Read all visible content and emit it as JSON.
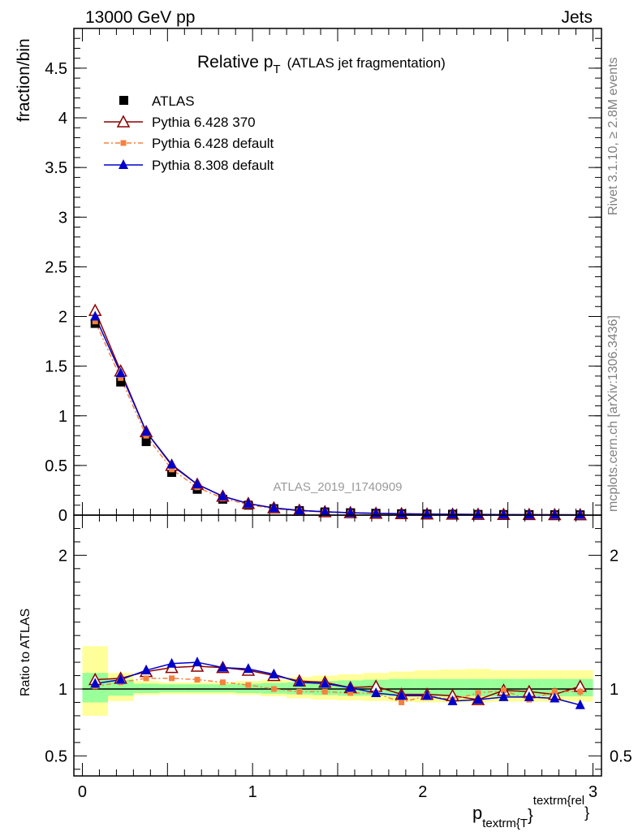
{
  "header": {
    "left": "13000 GeV pp",
    "right": "Jets"
  },
  "plot_title": {
    "main": "Relative p",
    "sub": "T",
    "rest": "(ATLAS jet fragmentation)"
  },
  "analysis_label": "ATLAS_2019_I1740909",
  "side_text": {
    "rivet": "Rivet 3.1.10, ≥ 2.8M events",
    "source": "mcplots.cern.ch [arXiv:1306.3436]"
  },
  "colors": {
    "atlas": "#000000",
    "py6_370": "#8b0000",
    "py6_default": "#f5813f",
    "py8_default": "#0000cc",
    "band_inner": "#99ff99",
    "band_outer": "#ffff99"
  },
  "chart_data": [
    {
      "type": "scatter",
      "ylabel": "fraction/bin",
      "xlim": [
        -0.05,
        3.05
      ],
      "ylim": [
        0,
        4.9
      ],
      "grid": false,
      "legend_position": "top-left",
      "yticks": [
        {
          "v": 0,
          "label": "0"
        },
        {
          "v": 0.5,
          "label": "0.5"
        },
        {
          "v": 1,
          "label": "1"
        },
        {
          "v": 1.5,
          "label": "1.5"
        },
        {
          "v": 2,
          "label": "2"
        },
        {
          "v": 2.5,
          "label": "2.5"
        },
        {
          "v": 3,
          "label": "3"
        },
        {
          "v": 3.5,
          "label": "3.5"
        },
        {
          "v": 4,
          "label": "4"
        },
        {
          "v": 4.5,
          "label": "4.5"
        }
      ],
      "x": [
        0.075,
        0.225,
        0.375,
        0.525,
        0.675,
        0.825,
        0.975,
        1.125,
        1.275,
        1.425,
        1.575,
        1.725,
        1.875,
        2.025,
        2.175,
        2.325,
        2.475,
        2.625,
        2.775,
        2.925
      ],
      "series": [
        {
          "name": "ATLAS",
          "marker": "square",
          "values": [
            1.93,
            1.34,
            0.74,
            0.43,
            0.26,
            0.16,
            0.1,
            0.065,
            0.045,
            0.032,
            0.024,
            0.018,
            0.014,
            0.011,
            0.009,
            0.007,
            0.006,
            0.005,
            0.004,
            0.003
          ]
        },
        {
          "name": "Pythia 6.428 370",
          "marker": "triangle-open",
          "values": [
            2.06,
            1.45,
            0.84,
            0.5,
            0.31,
            0.19,
            0.117,
            0.073,
            0.048,
            0.034,
            0.025,
            0.018,
            0.014,
            0.011,
            0.009,
            0.007,
            0.006,
            0.005,
            0.004,
            0.003
          ]
        },
        {
          "name": "Pythia 6.428 default",
          "marker": "square-small",
          "values": [
            1.95,
            1.38,
            0.8,
            0.46,
            0.28,
            0.17,
            0.105,
            0.065,
            0.044,
            0.031,
            0.023,
            0.017,
            0.012,
            0.01,
            0.008,
            0.007,
            0.006,
            0.005,
            0.004,
            0.003
          ]
        },
        {
          "name": "Pythia 8.308 default",
          "marker": "triangle-filled",
          "values": [
            2.0,
            1.43,
            0.84,
            0.51,
            0.31,
            0.19,
            0.116,
            0.072,
            0.047,
            0.034,
            0.024,
            0.017,
            0.013,
            0.01,
            0.008,
            0.006,
            0.005,
            0.0045,
            0.0035,
            0.0026
          ]
        }
      ]
    },
    {
      "type": "scatter",
      "ylabel": "Ratio to ATLAS",
      "xlabel_main": "p",
      "xlabel_sub": "textrm{T",
      "xlabel_close": "}",
      "xlabel_sup": "textrm{rel",
      "xlabel_sup_close": "}",
      "xlim": [
        -0.05,
        3.05
      ],
      "ylim": [
        0.35,
        2.3
      ],
      "grid": false,
      "xticks": [
        {
          "v": 0,
          "label": "0"
        },
        {
          "v": 1,
          "label": "1"
        },
        {
          "v": 2,
          "label": "2"
        },
        {
          "v": 3,
          "label": "3"
        }
      ],
      "yticks": [
        {
          "v": 0.5,
          "label": "0.5"
        },
        {
          "v": 1,
          "label": "1"
        },
        {
          "v": 2,
          "label": "2"
        }
      ],
      "bins": [
        0.0,
        0.15,
        0.3,
        0.45,
        0.6,
        0.75,
        0.9,
        1.05,
        1.2,
        1.35,
        1.5,
        1.65,
        1.8,
        1.95,
        2.1,
        2.25,
        2.4,
        2.55,
        2.7,
        2.85,
        3.0
      ],
      "band_inner": [
        [
          0.9,
          1.12
        ],
        [
          0.95,
          1.07
        ],
        [
          0.97,
          1.04
        ],
        [
          0.975,
          1.035
        ],
        [
          0.975,
          1.035
        ],
        [
          0.975,
          1.035
        ],
        [
          0.97,
          1.04
        ],
        [
          0.965,
          1.045
        ],
        [
          0.96,
          1.05
        ],
        [
          0.955,
          1.06
        ],
        [
          0.95,
          1.065
        ],
        [
          0.95,
          1.07
        ],
        [
          0.945,
          1.075
        ],
        [
          0.945,
          1.075
        ],
        [
          0.945,
          1.075
        ],
        [
          0.945,
          1.075
        ],
        [
          0.945,
          1.075
        ],
        [
          0.945,
          1.075
        ],
        [
          0.945,
          1.075
        ],
        [
          0.945,
          1.075
        ]
      ],
      "band_outer": [
        [
          0.8,
          1.32
        ],
        [
          0.91,
          1.12
        ],
        [
          0.955,
          1.06
        ],
        [
          0.96,
          1.05
        ],
        [
          0.96,
          1.05
        ],
        [
          0.96,
          1.05
        ],
        [
          0.955,
          1.06
        ],
        [
          0.945,
          1.07
        ],
        [
          0.93,
          1.09
        ],
        [
          0.92,
          1.1
        ],
        [
          0.915,
          1.11
        ],
        [
          0.91,
          1.12
        ],
        [
          0.905,
          1.13
        ],
        [
          0.9,
          1.14
        ],
        [
          0.9,
          1.145
        ],
        [
          0.9,
          1.15
        ],
        [
          0.905,
          1.14
        ],
        [
          0.905,
          1.14
        ],
        [
          0.905,
          1.14
        ],
        [
          0.905,
          1.14
        ]
      ],
      "x": [
        0.075,
        0.225,
        0.375,
        0.525,
        0.675,
        0.825,
        0.975,
        1.125,
        1.275,
        1.425,
        1.575,
        1.725,
        1.875,
        2.025,
        2.175,
        2.325,
        2.475,
        2.625,
        2.775,
        2.925
      ],
      "series": [
        {
          "name": "Pythia 6.428 370",
          "marker": "triangle-open",
          "values": [
            1.07,
            1.08,
            1.13,
            1.16,
            1.17,
            1.16,
            1.14,
            1.1,
            1.06,
            1.05,
            1.01,
            1.02,
            0.96,
            0.96,
            0.95,
            0.92,
            0.99,
            0.98,
            0.96,
            1.02
          ],
          "err": [
            0.01,
            0.01,
            0.01,
            0.01,
            0.01,
            0.01,
            0.01,
            0.01,
            0.01,
            0.01,
            0.01,
            0.01,
            0.01,
            0.01,
            0.01,
            0.015,
            0.02,
            0.02,
            0.025,
            0.03
          ]
        },
        {
          "name": "Pythia 6.428 default",
          "marker": "square-small",
          "values": [
            1.02,
            1.05,
            1.08,
            1.08,
            1.07,
            1.05,
            1.03,
            1.0,
            0.98,
            0.98,
            0.97,
            0.97,
            0.9,
            0.95,
            0.92,
            0.97,
            0.99,
            0.92,
            0.98,
            0.98
          ],
          "err": [
            0.01,
            0.01,
            0.01,
            0.01,
            0.01,
            0.01,
            0.01,
            0.01,
            0.01,
            0.01,
            0.01,
            0.01,
            0.01,
            0.01,
            0.015,
            0.015,
            0.02,
            0.02,
            0.025,
            0.03
          ]
        },
        {
          "name": "Pythia 8.308 default",
          "marker": "triangle-filled",
          "values": [
            1.04,
            1.07,
            1.14,
            1.19,
            1.2,
            1.16,
            1.15,
            1.11,
            1.05,
            1.04,
            1.01,
            0.97,
            0.95,
            0.95,
            0.91,
            0.92,
            0.94,
            0.94,
            0.93,
            0.88
          ],
          "err": [
            0.01,
            0.01,
            0.01,
            0.01,
            0.01,
            0.01,
            0.01,
            0.01,
            0.01,
            0.01,
            0.01,
            0.01,
            0.01,
            0.01,
            0.015,
            0.015,
            0.02,
            0.02,
            0.025,
            0.03
          ]
        }
      ]
    }
  ]
}
